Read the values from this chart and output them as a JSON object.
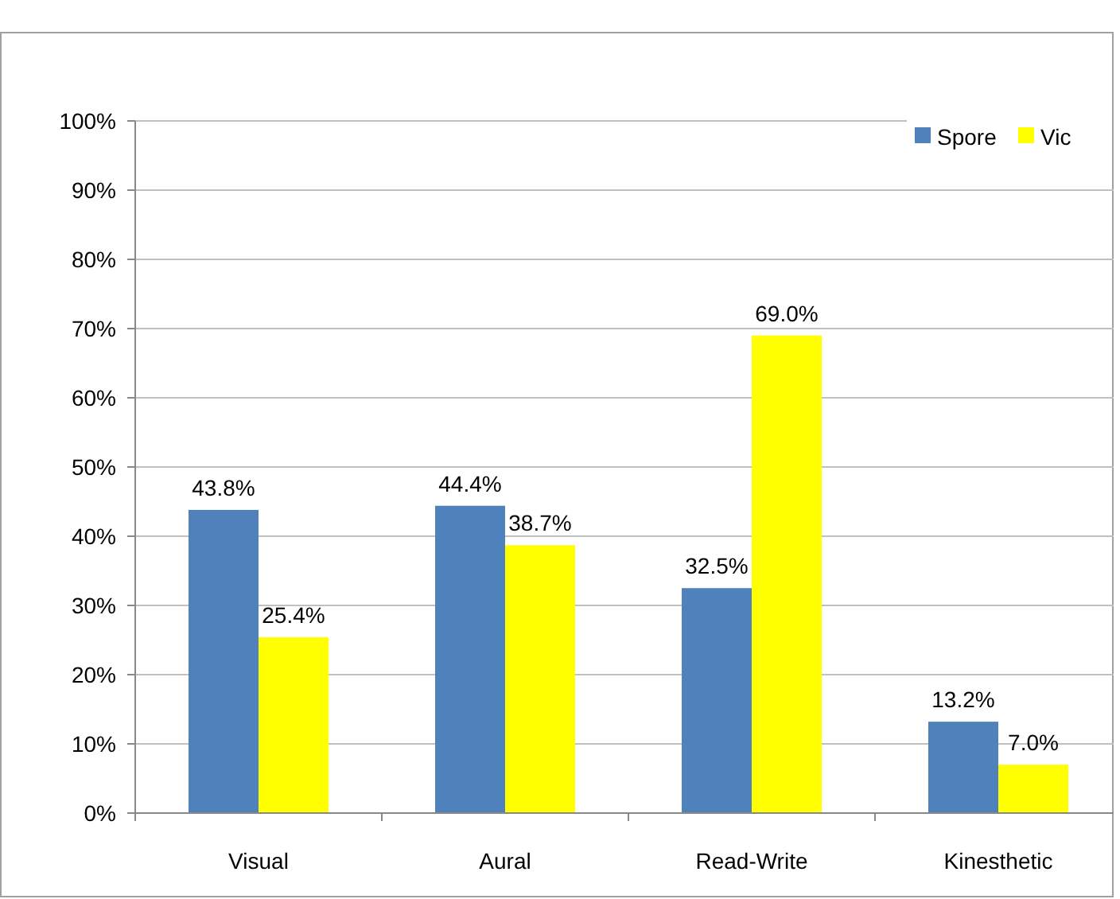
{
  "chart_data": {
    "type": "bar",
    "categories": [
      "Visual",
      "Aural",
      "Read-Write",
      "Kinesthetic"
    ],
    "series": [
      {
        "name": "Spore",
        "color": "#4f81bd",
        "values": [
          43.8,
          44.4,
          32.5,
          13.2
        ],
        "value_labels": [
          "43.8%",
          "44.4%",
          "32.5%",
          "13.2%"
        ]
      },
      {
        "name": "Vic",
        "color": "#ffff00",
        "values": [
          25.4,
          38.7,
          69.0,
          7.0
        ],
        "value_labels": [
          "25.4%",
          "38.7%",
          "69.0%",
          "7.0%"
        ]
      }
    ],
    "ylim": [
      0,
      100
    ],
    "yticks": [
      {
        "value": 0,
        "label": "0%"
      },
      {
        "value": 10,
        "label": "10%"
      },
      {
        "value": 20,
        "label": "20%"
      },
      {
        "value": 30,
        "label": "30%"
      },
      {
        "value": 40,
        "label": "40%"
      },
      {
        "value": 50,
        "label": "50%"
      },
      {
        "value": 60,
        "label": "60%"
      },
      {
        "value": 70,
        "label": "70%"
      },
      {
        "value": 80,
        "label": "80%"
      },
      {
        "value": 90,
        "label": "90%"
      },
      {
        "value": 100,
        "label": "100%"
      }
    ],
    "grid": "y",
    "legend": "top right"
  }
}
